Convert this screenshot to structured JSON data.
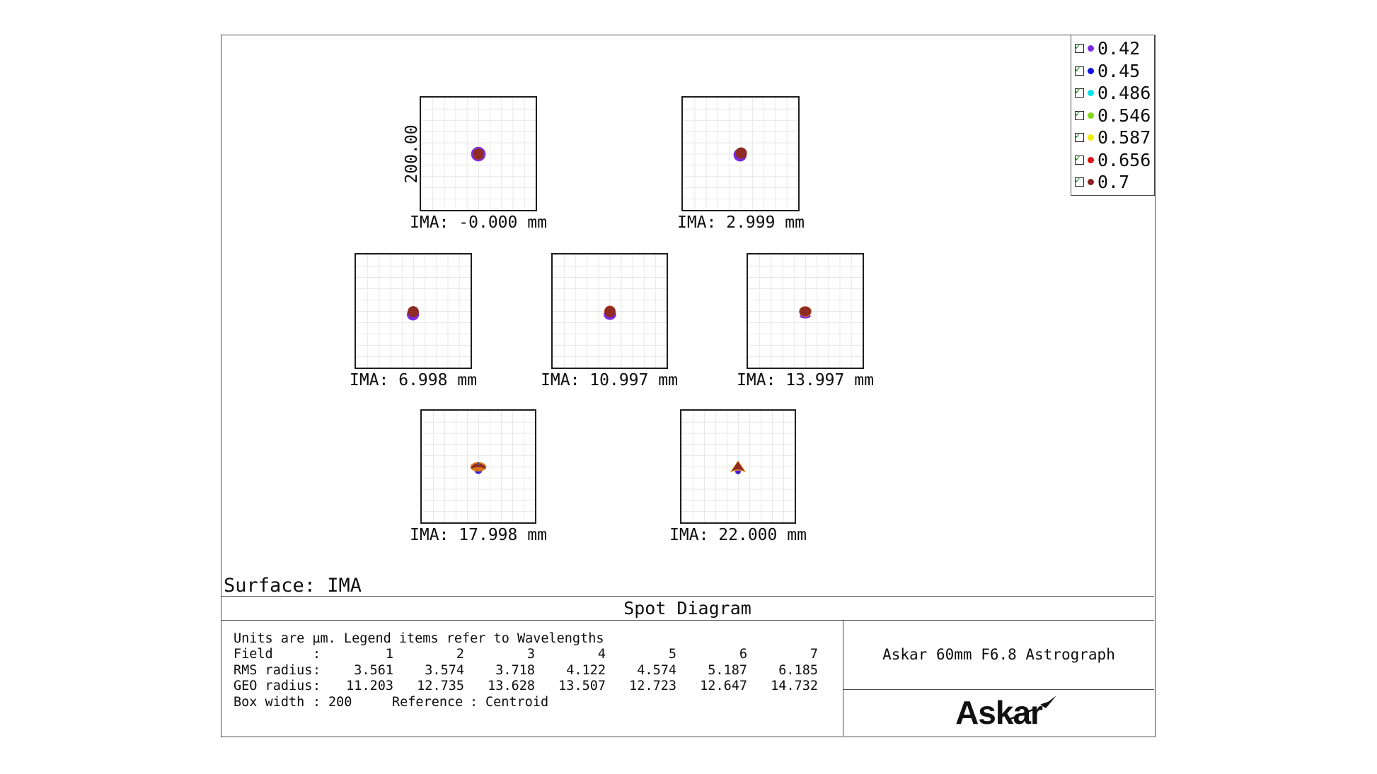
{
  "meta": {
    "surface_label": "Surface: IMA",
    "diagram_title": "Spot Diagram",
    "scale_label": "200.00"
  },
  "colors": {
    "frame_line": "#4a4a4a",
    "grid_line": "#e7e7e7",
    "spot_red": "#8f2a24",
    "spot_orange": "#d8781a",
    "spot_purple": "#7d2ae2",
    "spot_blue": "#3a23d6",
    "check_green": "#1c8a1c"
  },
  "legend": {
    "items": [
      {
        "label": "0.42",
        "color": "#7d2ae2"
      },
      {
        "label": "0.45",
        "color": "#1212e0"
      },
      {
        "label": "0.486",
        "color": "#00e4f0"
      },
      {
        "label": "0.546",
        "color": "#85d41c"
      },
      {
        "label": "0.587",
        "color": "#f2ea00"
      },
      {
        "label": "0.656",
        "color": "#e01313"
      },
      {
        "label": "0.7",
        "color": "#8b2020"
      }
    ]
  },
  "panels": [
    {
      "ima_label": "IMA: -0.000 mm"
    },
    {
      "ima_label": "IMA: 2.999 mm"
    },
    {
      "ima_label": "IMA: 6.998 mm"
    },
    {
      "ima_label": "IMA: 10.997 mm"
    },
    {
      "ima_label": "IMA: 13.997 mm"
    },
    {
      "ima_label": "IMA: 17.998 mm"
    },
    {
      "ima_label": "IMA: 22.000 mm"
    }
  ],
  "table": {
    "note": "Units are µm. Legend items refer to Wavelengths",
    "colon": ":",
    "rows": {
      "field": {
        "label": "Field",
        "values": [
          "1",
          "2",
          "3",
          "4",
          "5",
          "6",
          "7"
        ]
      },
      "rms": {
        "label": "RMS radius",
        "values": [
          "3.561",
          "3.574",
          "3.718",
          "4.122",
          "4.574",
          "5.187",
          "6.185"
        ]
      },
      "geo": {
        "label": "GEO radius",
        "values": [
          "11.203",
          "12.735",
          "13.628",
          "13.507",
          "12.723",
          "12.647",
          "14.732"
        ]
      }
    },
    "box_width_label": "Box width",
    "box_width_value": "200",
    "reference_label": "Reference",
    "reference_value": "Centroid"
  },
  "footer": {
    "title": "Askar 60mm F6.8 Astrograph",
    "logo_text": "Askar"
  },
  "chart_data": {
    "type": "scatter",
    "title": "Spot Diagram",
    "surface": "IMA",
    "units_note": "Units are µm. Legend items refer to Wavelengths",
    "wavelength_legend_um": [
      0.42,
      0.45,
      0.486,
      0.546,
      0.587,
      0.656,
      0.7
    ],
    "fields": [
      1,
      2,
      3,
      4,
      5,
      6,
      7
    ],
    "field_ima_positions_mm": [
      -0.0,
      2.999,
      6.998,
      10.997,
      13.997,
      17.998,
      22.0
    ],
    "rms_radius_um": [
      3.561,
      3.574,
      3.718,
      4.122,
      4.574,
      5.187,
      6.185
    ],
    "geo_radius_um": [
      11.203,
      12.735,
      13.628,
      13.507,
      12.723,
      12.647,
      14.732
    ],
    "box_width_um": 200,
    "reference": "Centroid",
    "axis_scale_label": "200.00",
    "legend_position": "top-right",
    "grid": true
  }
}
